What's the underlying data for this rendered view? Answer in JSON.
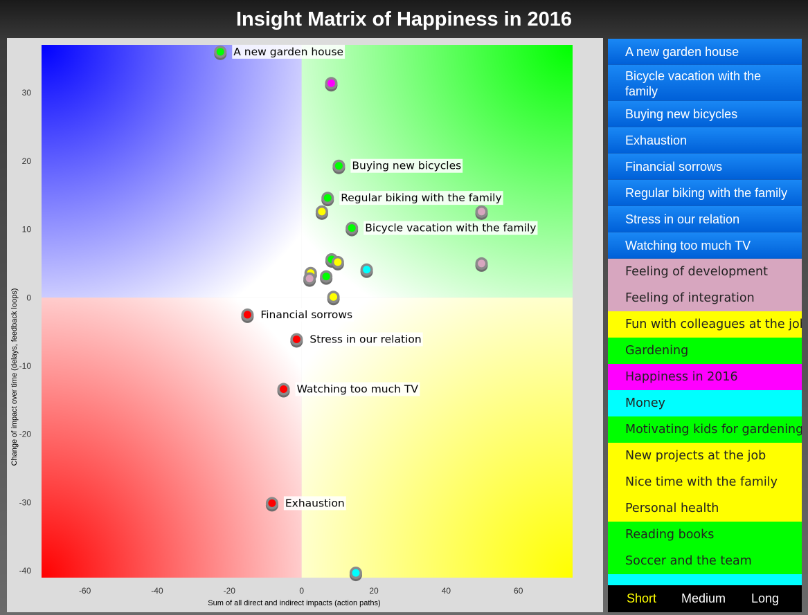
{
  "title": "Insight Matrix of Happiness in 2016",
  "chart_data": {
    "type": "scatter",
    "title": "Insight Matrix of Happiness in 2016",
    "xlabel": "Sum of all direct and indirect impacts (action paths)",
    "ylabel": "Change of impact over time (delays, feedback loops)",
    "xlim": [
      -72,
      75
    ],
    "ylim": [
      -41,
      37
    ],
    "x_ticks": [
      -60,
      -40,
      -20,
      0,
      20,
      40,
      60
    ],
    "y_ticks": [
      -40,
      -30,
      -20,
      -10,
      0,
      10,
      20,
      30
    ],
    "quadrant_colors": {
      "top_left": "#0000ff",
      "top_right": "#00ff00",
      "bottom_left": "#ff0000",
      "bottom_right": "#ffff00"
    },
    "points": [
      {
        "x": -22.5,
        "y": 36,
        "color": "#00ff00",
        "label": "A new garden house"
      },
      {
        "x": 8.2,
        "y": 31.4,
        "color": "#ff00ff",
        "label": ""
      },
      {
        "x": 10.3,
        "y": 19.3,
        "color": "#00ff00",
        "label": "Buying new bicycles"
      },
      {
        "x": 7.2,
        "y": 14.6,
        "color": "#00ff00",
        "label": "Regular biking with the family"
      },
      {
        "x": 5.6,
        "y": 12.6,
        "color": "#ffff00",
        "label": ""
      },
      {
        "x": 49.8,
        "y": 12.6,
        "color": "#d7a6bf",
        "label": ""
      },
      {
        "x": 13.9,
        "y": 10.2,
        "color": "#00ff00",
        "label": "Bicycle vacation with the family"
      },
      {
        "x": 8.3,
        "y": 5.6,
        "color": "#00ff00",
        "label": ""
      },
      {
        "x": 10,
        "y": 5.2,
        "color": "#ffff00",
        "label": ""
      },
      {
        "x": 49.8,
        "y": 5,
        "color": "#d7a6bf",
        "label": ""
      },
      {
        "x": 18,
        "y": 4.1,
        "color": "#00ffff",
        "label": ""
      },
      {
        "x": 2.5,
        "y": 3.6,
        "color": "#ffff00",
        "label": ""
      },
      {
        "x": 6.8,
        "y": 3.1,
        "color": "#00ff00",
        "label": ""
      },
      {
        "x": 2.2,
        "y": 2.8,
        "color": "#d7a6bf",
        "label": ""
      },
      {
        "x": 8.8,
        "y": 0.1,
        "color": "#ffff00",
        "label": ""
      },
      {
        "x": -15,
        "y": -2.5,
        "color": "#ff0000",
        "label": "Financial sorrows"
      },
      {
        "x": -1.4,
        "y": -6.1,
        "color": "#ff0000",
        "label": "Stress in our relation"
      },
      {
        "x": -5,
        "y": -13.4,
        "color": "#ff0000",
        "label": "Watching too much TV"
      },
      {
        "x": -8.2,
        "y": -30.1,
        "color": "#ff0000",
        "label": "Exhaustion"
      },
      {
        "x": 15,
        "y": -40.3,
        "color": "#00ffff",
        "label": ""
      }
    ]
  },
  "sidebar": {
    "items": [
      {
        "label": "A new garden house",
        "style": "blue"
      },
      {
        "label": "Bicycle vacation with the family",
        "style": "blue"
      },
      {
        "label": "Buying new bicycles",
        "style": "blue"
      },
      {
        "label": "Exhaustion",
        "style": "blue"
      },
      {
        "label": "Financial sorrows",
        "style": "blue"
      },
      {
        "label": "Regular biking with the family",
        "style": "blue"
      },
      {
        "label": "Stress in our relation",
        "style": "blue"
      },
      {
        "label": "Watching too much TV",
        "style": "blue"
      },
      {
        "label": "Feeling of development",
        "style": "pink"
      },
      {
        "label": "Feeling of integration",
        "style": "pink"
      },
      {
        "label": "Fun with colleagues at the job",
        "style": "yellow"
      },
      {
        "label": "Gardening",
        "style": "green"
      },
      {
        "label": "Happiness in 2016",
        "style": "magenta"
      },
      {
        "label": "Money",
        "style": "cyan"
      },
      {
        "label": "Motivating kids for gardening",
        "style": "green"
      },
      {
        "label": "New projects at the job",
        "style": "yellow"
      },
      {
        "label": "Nice time with the family",
        "style": "yellow"
      },
      {
        "label": "Personal health",
        "style": "yellow"
      },
      {
        "label": "Reading books",
        "style": "green"
      },
      {
        "label": "Soccer and the team",
        "style": "green"
      }
    ]
  },
  "tabs": {
    "short": "Short",
    "medium": "Medium",
    "long": "Long",
    "active": "short",
    "active_color": "#ffff00"
  }
}
